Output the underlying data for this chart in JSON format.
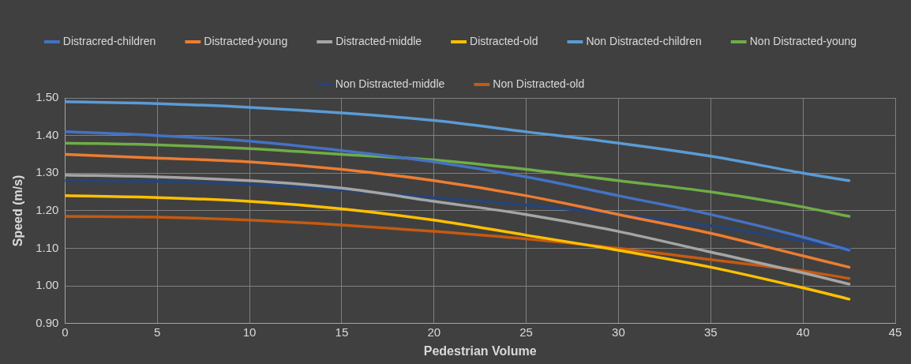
{
  "chart_data": {
    "type": "line",
    "xlabel": "Pedestrian Volume",
    "ylabel": "Speed (m/s)",
    "x": [
      0,
      5,
      10,
      15,
      20,
      25,
      30,
      35,
      40,
      42.5
    ],
    "xlim": [
      0,
      45
    ],
    "xticks": [
      0,
      5,
      10,
      15,
      20,
      25,
      30,
      35,
      40,
      45
    ],
    "ylim": [
      0.9,
      1.5
    ],
    "yticks": [
      {
        "value": 0.9,
        "label": "0.90"
      },
      {
        "value": 1.0,
        "label": "1.00"
      },
      {
        "value": 1.1,
        "label": "1.10"
      },
      {
        "value": 1.2,
        "label": "1.20"
      },
      {
        "value": 1.3,
        "label": "1.30"
      },
      {
        "value": 1.4,
        "label": "1.40"
      },
      {
        "value": 1.5,
        "label": "1.50"
      }
    ],
    "grid": true,
    "legend": "top",
    "marker": "none",
    "line_style": "solid",
    "series": [
      {
        "name": "Distracred-children",
        "color": "#4472c4",
        "values": [
          1.41,
          1.4,
          1.385,
          1.36,
          1.33,
          1.29,
          1.24,
          1.19,
          1.13,
          1.095
        ]
      },
      {
        "name": "Distracted-young",
        "color": "#ed7d31",
        "values": [
          1.35,
          1.34,
          1.33,
          1.31,
          1.28,
          1.24,
          1.19,
          1.14,
          1.08,
          1.05
        ]
      },
      {
        "name": "Distracted-middle",
        "color": "#a5a5a5",
        "values": [
          1.295,
          1.29,
          1.28,
          1.26,
          1.225,
          1.19,
          1.145,
          1.09,
          1.035,
          1.005
        ]
      },
      {
        "name": "Distracted-old",
        "color": "#ffc000",
        "values": [
          1.24,
          1.235,
          1.225,
          1.205,
          1.175,
          1.135,
          1.095,
          1.05,
          0.995,
          0.965
        ]
      },
      {
        "name": "Non Distracted-children",
        "color": "#5b9bd5",
        "values": [
          1.49,
          1.485,
          1.475,
          1.46,
          1.44,
          1.41,
          1.38,
          1.345,
          1.3,
          1.28
        ]
      },
      {
        "name": "Non Distracted-young",
        "color": "#70ad47",
        "values": [
          1.38,
          1.375,
          1.365,
          1.35,
          1.335,
          1.31,
          1.28,
          1.25,
          1.21,
          1.185
        ]
      },
      {
        "name": "Non Distracted-middle",
        "color": "#264478",
        "values": [
          1.28,
          1.278,
          1.27,
          1.255,
          1.235,
          1.215,
          1.19,
          1.16,
          1.12,
          1.1
        ]
      },
      {
        "name": "Non Distracted-old",
        "color": "#c55a11",
        "values": [
          1.185,
          1.183,
          1.175,
          1.162,
          1.145,
          1.125,
          1.1,
          1.07,
          1.04,
          1.02
        ]
      }
    ]
  }
}
